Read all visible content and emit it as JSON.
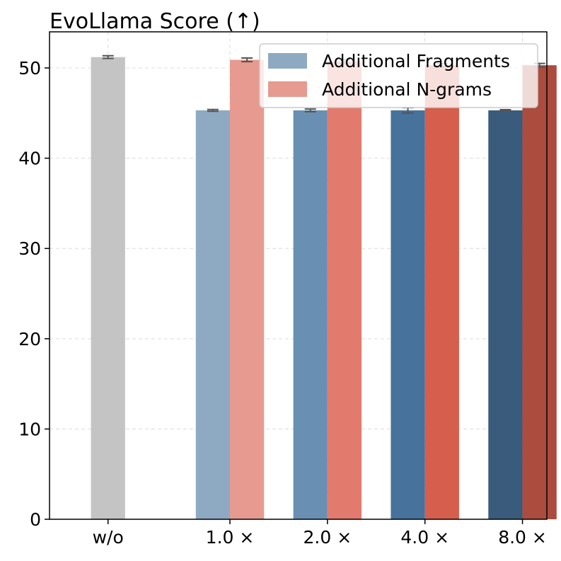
{
  "chart_data": {
    "type": "bar",
    "title": "EvoLlama Score (↑)",
    "xlabel": "",
    "ylabel": "",
    "ylim": [
      0,
      54
    ],
    "yticks": [
      0,
      10,
      20,
      30,
      40,
      50
    ],
    "grid": true,
    "legend_position": "top-right",
    "categories": [
      "w/o",
      "1.0 ×",
      "2.0 ×",
      "4.0 ×",
      "8.0 ×"
    ],
    "baseline": {
      "category": "w/o",
      "value": 51.2,
      "error": 0.15,
      "color": "#c4c4c4"
    },
    "series": [
      {
        "name": "Additional Fragments",
        "legend_color": "#8eaac2",
        "values": [
          null,
          45.3,
          45.3,
          45.3,
          45.3
        ],
        "errors": [
          null,
          0.1,
          0.15,
          0.3,
          0.08
        ],
        "colors": [
          null,
          "#8eaac2",
          "#6990b3",
          "#46729c",
          "#3a5b7b"
        ]
      },
      {
        "name": "Additional N-grams",
        "legend_color": "#e69a90",
        "values": [
          null,
          50.9,
          50.7,
          50.3,
          50.3
        ],
        "errors": [
          null,
          0.2,
          0.2,
          0.2,
          0.2
        ],
        "colors": [
          null,
          "#e69a90",
          "#e27b6e",
          "#d65e4c",
          "#ac4c3e"
        ]
      }
    ]
  }
}
